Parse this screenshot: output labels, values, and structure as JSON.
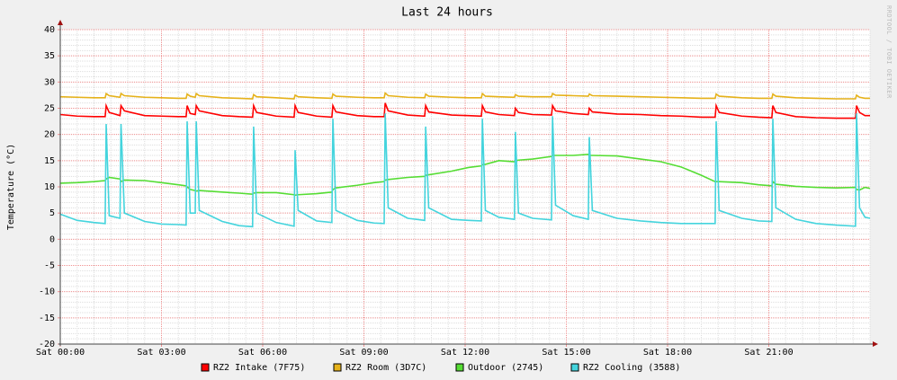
{
  "chart_data": {
    "type": "line",
    "title": "Last 24 hours",
    "ylabel": "Temperature (°C)",
    "side_note": "RRDTOOL / TOBI OETIKER",
    "xlim": [
      0,
      24
    ],
    "xticks": [
      {
        "value": 0,
        "label": "Sat 00:00"
      },
      {
        "value": 3,
        "label": "Sat 03:00"
      },
      {
        "value": 6,
        "label": "Sat 06:00"
      },
      {
        "value": 9,
        "label": "Sat 09:00"
      },
      {
        "value": 12,
        "label": "Sat 12:00"
      },
      {
        "value": 15,
        "label": "Sat 15:00"
      },
      {
        "value": 18,
        "label": "Sat 18:00"
      },
      {
        "value": 21,
        "label": "Sat 21:00"
      }
    ],
    "ylim": [
      -20,
      40
    ],
    "yticks": [
      -20,
      -15,
      -10,
      -5,
      0,
      5,
      10,
      15,
      20,
      25,
      30,
      35,
      40
    ],
    "grid": true,
    "minor_xstep": 0.5,
    "minor_ystep": 1,
    "x": [
      0,
      0.5,
      1,
      1.33,
      1.36,
      1.45,
      1.77,
      1.8,
      1.9,
      2.5,
      3,
      3.5,
      3.73,
      3.76,
      3.85,
      4.0,
      4.03,
      4.12,
      4.8,
      5.3,
      5.7,
      5.73,
      5.82,
      6.4,
      6.93,
      6.96,
      7.05,
      7.6,
      8.05,
      8.08,
      8.17,
      8.8,
      9.3,
      9.6,
      9.63,
      9.72,
      10.3,
      10.8,
      10.83,
      10.92,
      11.6,
      12.1,
      12.48,
      12.51,
      12.6,
      13.0,
      13.46,
      13.49,
      13.58,
      14.0,
      14.56,
      14.59,
      14.68,
      15.2,
      15.65,
      15.68,
      15.77,
      16.5,
      17.2,
      17.8,
      18.4,
      19.0,
      19.41,
      19.44,
      19.53,
      20.2,
      20.7,
      21.09,
      21.12,
      21.21,
      21.8,
      22.4,
      23.0,
      23.57,
      23.6,
      23.69,
      23.85,
      24.0
    ],
    "series": [
      {
        "name": "RZ2 Intake (7F75)",
        "color": "#ff0000",
        "values": [
          23.8,
          23.5,
          23.4,
          23.4,
          25.5,
          24.2,
          23.6,
          25.5,
          24.5,
          23.6,
          23.5,
          23.4,
          23.4,
          25.5,
          24,
          23.8,
          25.5,
          24.5,
          23.6,
          23.4,
          23.3,
          25.5,
          24.2,
          23.5,
          23.3,
          25.5,
          24.2,
          23.5,
          23.3,
          25.5,
          24.3,
          23.6,
          23.4,
          23.4,
          26,
          24.5,
          23.7,
          23.5,
          25.5,
          24.3,
          23.7,
          23.6,
          23.5,
          25.5,
          24.3,
          23.8,
          23.6,
          25,
          24.2,
          23.8,
          23.7,
          25.5,
          24.5,
          24,
          23.8,
          25,
          24.3,
          23.9,
          23.8,
          23.6,
          23.5,
          23.3,
          23.3,
          25.5,
          24.2,
          23.5,
          23.3,
          23.2,
          25.5,
          24.2,
          23.4,
          23.2,
          23.1,
          23.1,
          25.5,
          24.2,
          23.6,
          23.6
        ]
      },
      {
        "name": "RZ2 Room (3D7C)",
        "color": "#e6b21a",
        "values": [
          27.2,
          27.1,
          27.0,
          27.0,
          27.8,
          27.4,
          27.1,
          27.8,
          27.4,
          27.1,
          27.0,
          26.9,
          26.9,
          27.7,
          27.3,
          27.1,
          27.8,
          27.4,
          27.0,
          26.9,
          26.8,
          27.6,
          27.2,
          27.0,
          26.8,
          27.5,
          27.2,
          27.0,
          26.9,
          27.7,
          27.3,
          27.1,
          27.0,
          27.0,
          27.9,
          27.4,
          27.1,
          27.0,
          27.7,
          27.3,
          27.1,
          27.0,
          27.0,
          27.8,
          27.3,
          27.2,
          27.1,
          27.6,
          27.3,
          27.2,
          27.2,
          27.8,
          27.5,
          27.4,
          27.3,
          27.7,
          27.4,
          27.3,
          27.2,
          27.1,
          27.0,
          26.9,
          26.9,
          27.7,
          27.3,
          27.0,
          26.9,
          26.9,
          27.7,
          27.3,
          27.0,
          26.9,
          26.8,
          26.8,
          27.5,
          27.1,
          26.9,
          26.9
        ]
      },
      {
        "name": "Outdoor (2745)",
        "color": "#55dd33",
        "values": [
          10.7,
          10.8,
          11,
          11.2,
          11.5,
          11.8,
          11.5,
          11,
          11.3,
          11.2,
          10.8,
          10.4,
          10.2,
          10,
          9.5,
          9.3,
          9.2,
          9.3,
          9,
          8.8,
          8.6,
          8.8,
          8.9,
          8.9,
          8.5,
          8.4,
          8.5,
          8.7,
          9,
          9.5,
          9.8,
          10.3,
          10.8,
          11,
          11.3,
          11.4,
          11.8,
          12,
          12.2,
          12.3,
          13,
          13.7,
          14,
          14.2,
          14.3,
          15,
          14.8,
          15,
          15.1,
          15.3,
          15.8,
          16,
          16,
          16,
          16.2,
          16,
          16,
          15.9,
          15.3,
          14.8,
          13.8,
          12.2,
          11,
          11,
          11,
          10.8,
          10.4,
          10.2,
          11,
          10.5,
          10.1,
          9.9,
          9.8,
          9.9,
          9.5,
          9.4,
          9.9,
          9.7
        ]
      },
      {
        "name": "RZ2 Cooling (3588)",
        "color": "#44d4dd",
        "values": [
          4.8,
          3.6,
          3.2,
          3.0,
          22,
          4.5,
          4.0,
          22,
          5,
          3.4,
          2.9,
          2.8,
          2.7,
          22.5,
          5,
          5,
          22.5,
          5.5,
          3.4,
          2.6,
          2.4,
          21.5,
          5,
          3.2,
          2.5,
          17,
          5.5,
          3.5,
          3.2,
          23,
          5.5,
          3.6,
          3.1,
          3.0,
          24,
          6,
          4,
          3.6,
          21.5,
          6,
          3.8,
          3.6,
          3.5,
          23,
          5.5,
          4.2,
          3.8,
          20.5,
          5,
          4,
          3.7,
          23.5,
          6.5,
          4.5,
          3.8,
          19.5,
          5.5,
          4,
          3.5,
          3.2,
          3,
          3,
          3,
          22.5,
          5.5,
          4,
          3.5,
          3.4,
          23,
          6,
          3.8,
          3,
          2.7,
          2.5,
          24,
          6,
          4.2,
          4.0
        ]
      }
    ]
  }
}
